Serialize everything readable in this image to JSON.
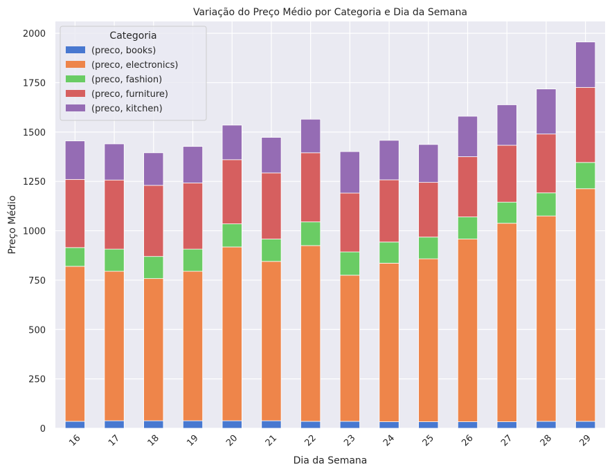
{
  "chart_data": {
    "type": "bar",
    "stacked": true,
    "title": "Variação do Preço Médio por Categoria e Dia da Semana",
    "xlabel": "Dia da Semana",
    "ylabel": "Preço Médio",
    "ylim": [
      0,
      2060
    ],
    "yticks": [
      0,
      250,
      500,
      750,
      1000,
      1250,
      1500,
      1750,
      2000
    ],
    "grid": true,
    "categories": [
      "16",
      "17",
      "18",
      "19",
      "20",
      "21",
      "22",
      "23",
      "24",
      "25",
      "26",
      "27",
      "28",
      "29"
    ],
    "legend": {
      "title": "Categoria",
      "placement": "top-left"
    },
    "series": [
      {
        "name": "(preco, books)",
        "color": "#4878d0",
        "values": [
          35,
          38,
          38,
          38,
          38,
          38,
          35,
          35,
          33,
          33,
          33,
          33,
          35,
          35
        ]
      },
      {
        "name": "(preco, electronics)",
        "color": "#ee854a",
        "values": [
          785,
          757,
          720,
          757,
          880,
          807,
          890,
          740,
          803,
          825,
          925,
          1005,
          1040,
          1178
        ]
      },
      {
        "name": "(preco, fashion)",
        "color": "#6acc64",
        "values": [
          95,
          112,
          112,
          112,
          117,
          113,
          120,
          118,
          107,
          110,
          112,
          107,
          117,
          133
        ]
      },
      {
        "name": "(preco, furniture)",
        "color": "#d65f5f",
        "values": [
          345,
          350,
          360,
          335,
          325,
          335,
          350,
          298,
          315,
          277,
          305,
          288,
          298,
          380
        ]
      },
      {
        "name": "(preco, kitchen)",
        "color": "#956cb4",
        "values": [
          195,
          183,
          165,
          185,
          175,
          180,
          170,
          210,
          200,
          192,
          205,
          205,
          228,
          230
        ]
      }
    ]
  }
}
